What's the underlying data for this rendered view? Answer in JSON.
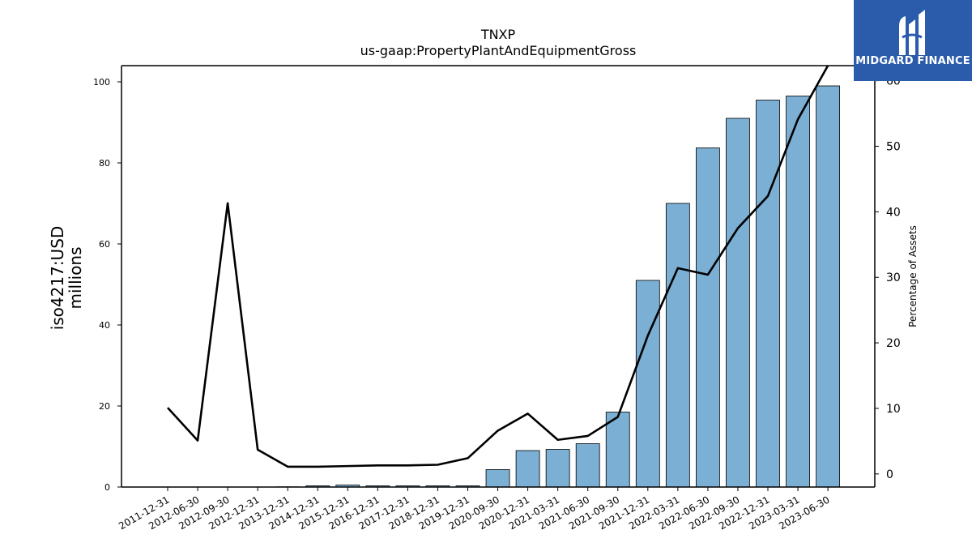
{
  "brand": {
    "name": "MIDGARD FINANCE",
    "logo_icon": "midgard-logo-icon",
    "color": "#2a5cab"
  },
  "chart_data": {
    "type": "bar",
    "title": "TNXP",
    "subtitle": "us-gaap:PropertyPlantAndEquipmentGross",
    "ylabel": "iso4217:USD",
    "ylabel_unit": "millions",
    "y2label": "Percentage of Assets",
    "ylim": [
      0,
      104
    ],
    "y2lim": [
      -2,
      62.3
    ],
    "yticks": [
      0,
      20,
      40,
      60,
      80,
      100
    ],
    "y2ticks": [
      0,
      10,
      20,
      30,
      40,
      50,
      60
    ],
    "categories": [
      "2011-12-31",
      "2012-06-30",
      "2012-09-30",
      "2012-12-31",
      "2013-12-31",
      "2014-12-31",
      "2015-12-31",
      "2016-12-31",
      "2017-12-31",
      "2018-12-31",
      "2019-12-31",
      "2020-09-30",
      "2020-12-31",
      "2021-03-31",
      "2021-06-30",
      "2021-09-30",
      "2021-12-31",
      "2022-03-31",
      "2022-06-30",
      "2022-09-30",
      "2022-12-31",
      "2023-03-31",
      "2023-06-30"
    ],
    "series": [
      {
        "kind": "bar",
        "axis": "left",
        "color": "#7bafd4",
        "values": [
          0,
          0,
          0,
          0,
          0.05,
          0.3,
          0.5,
          0.3,
          0.3,
          0.3,
          0.3,
          4.3,
          9.0,
          9.3,
          10.7,
          18.5,
          51.0,
          70.0,
          83.7,
          91.0,
          95.5,
          96.5,
          99.0
        ]
      },
      {
        "kind": "line",
        "axis": "right",
        "color": "#000000",
        "values": [
          10.1,
          5.1,
          41.3,
          3.7,
          1.1,
          1.1,
          1.2,
          1.3,
          1.3,
          1.4,
          2.4,
          6.6,
          9.2,
          5.2,
          5.8,
          8.7,
          21.1,
          31.4,
          30.4,
          37.5,
          42.4,
          54.1,
          62.3
        ]
      }
    ],
    "grid": false,
    "legend": "none"
  }
}
